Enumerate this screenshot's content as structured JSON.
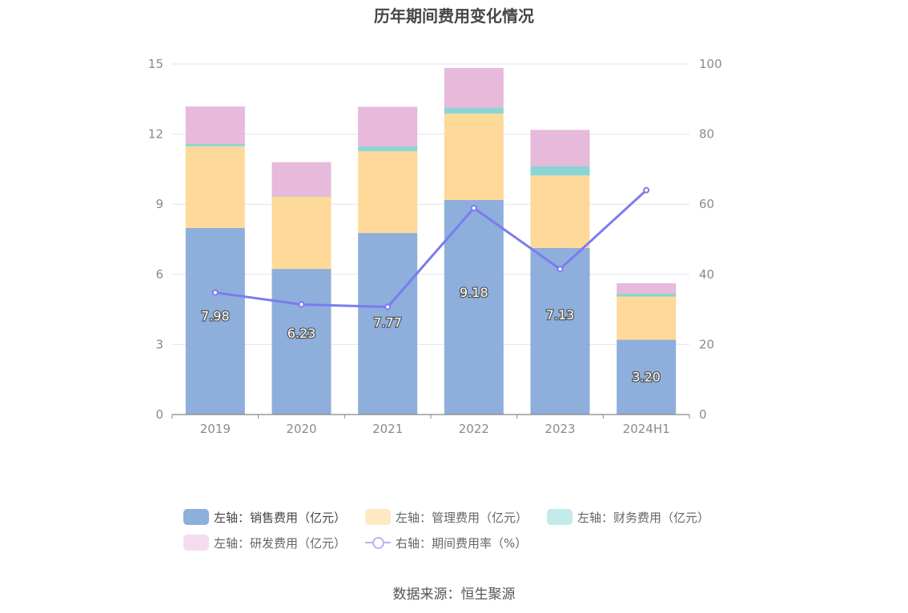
{
  "title": "历年期间费用变化情况",
  "source": "数据来源：恒生聚源",
  "chart_data": {
    "type": "bar",
    "stacked": true,
    "categories": [
      "2019",
      "2020",
      "2021",
      "2022",
      "2023",
      "2024H1"
    ],
    "y_left": {
      "ticks": [
        "0",
        "3",
        "6",
        "9",
        "12",
        "15"
      ],
      "ylim": [
        0,
        15
      ]
    },
    "y_right": {
      "ticks": [
        "0",
        "20",
        "40",
        "60",
        "80",
        "100"
      ],
      "ylim": [
        0,
        100
      ]
    },
    "grid": true,
    "series": [
      {
        "name": "左轴：销售费用（亿元）",
        "axis": "left",
        "type": "bar",
        "color": "#8eaedb",
        "values": [
          7.98,
          6.23,
          7.77,
          9.18,
          7.13,
          3.2
        ],
        "labels": [
          "7.98",
          "6.23",
          "7.77",
          "9.18",
          "7.13",
          "3.20"
        ]
      },
      {
        "name": "左轴：管理费用（亿元）",
        "axis": "left",
        "type": "bar",
        "color": "#ffd999",
        "values": [
          3.5,
          3.1,
          3.5,
          3.7,
          3.1,
          1.85
        ]
      },
      {
        "name": "左轴：财务费用（亿元）",
        "axis": "left",
        "type": "bar",
        "color": "#8ad4d4",
        "values": [
          0.1,
          0.02,
          0.2,
          0.25,
          0.4,
          0.12
        ]
      },
      {
        "name": "左轴：研发费用（亿元）",
        "axis": "left",
        "type": "bar",
        "color": "#e7b9db",
        "values": [
          1.6,
          1.45,
          1.7,
          1.7,
          1.55,
          0.45
        ]
      },
      {
        "name": "右轴：期间费用率（%）",
        "axis": "right",
        "type": "line",
        "color": "#7b7bf0",
        "values": [
          34.8,
          31.4,
          30.7,
          58.9,
          41.5,
          64.0
        ]
      }
    ],
    "legend_position": "bottom"
  }
}
